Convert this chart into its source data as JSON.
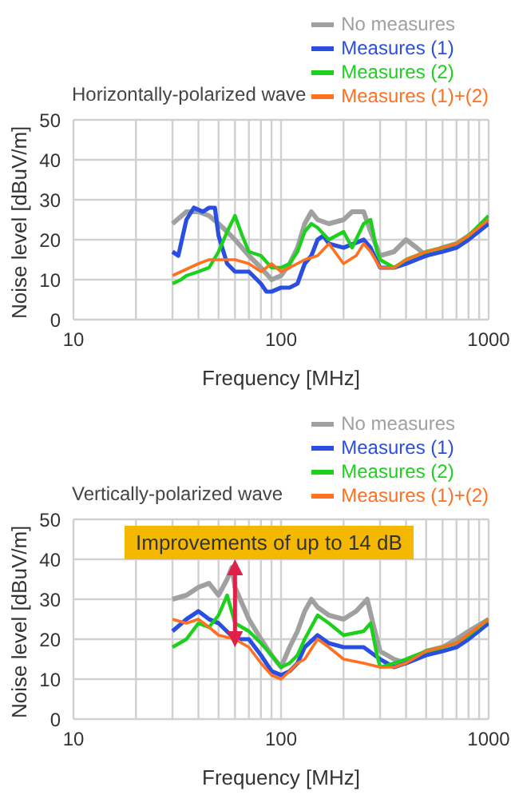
{
  "chart_data": [
    {
      "type": "line",
      "title": "Horizontally-polarized wave",
      "xlabel": "Frequency [MHz]",
      "ylabel": "Noise level [dBuV/m]",
      "log": "x",
      "xlim": [
        10,
        1000
      ],
      "xticks": [
        10,
        {
          "value": 20,
          "label": null
        },
        {
          "value": 30,
          "label": null
        },
        {
          "value": 40,
          "label": null
        },
        {
          "value": 50,
          "label": null
        },
        {
          "value": 60,
          "label": null
        },
        {
          "value": 70,
          "label": null
        },
        {
          "value": 80,
          "label": null
        },
        {
          "value": 90,
          "label": null
        },
        100,
        {
          "value": 200,
          "label": null
        },
        {
          "value": 300,
          "label": null
        },
        {
          "value": 400,
          "label": null
        },
        {
          "value": 500,
          "label": null
        },
        {
          "value": 600,
          "label": null
        },
        {
          "value": 700,
          "label": null
        },
        {
          "value": 800,
          "label": null
        },
        {
          "value": 900,
          "label": null
        },
        1000
      ],
      "ylim": [
        0,
        50
      ],
      "yticks": [
        0,
        10,
        20,
        30,
        40,
        50
      ],
      "grid": true,
      "legend": "top right",
      "series": [
        {
          "name": "No measures",
          "color": "#a0a0a0",
          "x": [
            30,
            35,
            40,
            45,
            50,
            55,
            60,
            70,
            80,
            90,
            100,
            110,
            120,
            130,
            140,
            150,
            170,
            200,
            220,
            250,
            270,
            300,
            350,
            400,
            450,
            500,
            600,
            700,
            800,
            900,
            1000
          ],
          "values": [
            24,
            27,
            27,
            26,
            24,
            22,
            20,
            16,
            13,
            10,
            11,
            14,
            18,
            24,
            27,
            25,
            24,
            25,
            27,
            27,
            22,
            16,
            17,
            20,
            18,
            16,
            18,
            19,
            21,
            23,
            25
          ]
        },
        {
          "name": "Measures (1)",
          "color": "#2a4fe0",
          "x": [
            30,
            32,
            35,
            38,
            42,
            45,
            48,
            50,
            55,
            60,
            70,
            80,
            85,
            90,
            100,
            110,
            120,
            130,
            140,
            150,
            160,
            170,
            200,
            250,
            270,
            300,
            350,
            400,
            500,
            600,
            700,
            800,
            1000
          ],
          "values": [
            17,
            16,
            25,
            28,
            27,
            28,
            28,
            21,
            14,
            12,
            12,
            9,
            7,
            7,
            8,
            8,
            9,
            14,
            16,
            20,
            21,
            19,
            18,
            20,
            18,
            13,
            13,
            14,
            16,
            17,
            18,
            20,
            24
          ]
        },
        {
          "name": "Measures (2)",
          "color": "#1ed01e",
          "x": [
            30,
            33,
            35,
            40,
            45,
            50,
            55,
            60,
            65,
            70,
            80,
            90,
            100,
            110,
            120,
            130,
            140,
            150,
            170,
            200,
            220,
            250,
            270,
            290,
            300,
            350,
            400,
            500,
            600,
            700,
            800,
            1000
          ],
          "values": [
            9,
            10,
            11,
            12,
            13,
            17,
            22,
            26,
            21,
            17,
            16,
            13,
            13,
            14,
            17,
            22,
            24,
            23,
            20,
            22,
            18,
            24,
            25,
            17,
            15,
            13,
            15,
            17,
            18,
            19,
            21,
            26
          ]
        },
        {
          "name": "Measures (1)+(2)",
          "color": "#ff7020",
          "x": [
            30,
            33,
            40,
            45,
            50,
            60,
            70,
            80,
            90,
            100,
            110,
            130,
            150,
            170,
            200,
            230,
            250,
            270,
            300,
            350,
            400,
            500,
            600,
            700,
            800,
            1000
          ],
          "values": [
            11,
            12,
            14,
            15,
            15,
            15,
            14,
            12,
            14,
            12,
            13,
            15,
            16,
            19,
            14,
            16,
            19,
            17,
            13,
            13,
            15,
            17,
            18,
            19,
            21,
            25
          ]
        }
      ]
    },
    {
      "type": "line",
      "title": "Vertically-polarized wave",
      "xlabel": "Frequency [MHz]",
      "ylabel": "Noise level [dBuV/m]",
      "log": "x",
      "xlim": [
        10,
        1000
      ],
      "xticks": [
        10,
        {
          "value": 20,
          "label": null
        },
        {
          "value": 30,
          "label": null
        },
        {
          "value": 40,
          "label": null
        },
        {
          "value": 50,
          "label": null
        },
        {
          "value": 60,
          "label": null
        },
        {
          "value": 70,
          "label": null
        },
        {
          "value": 80,
          "label": null
        },
        {
          "value": 90,
          "label": null
        },
        100,
        {
          "value": 200,
          "label": null
        },
        {
          "value": 300,
          "label": null
        },
        {
          "value": 400,
          "label": null
        },
        {
          "value": 500,
          "label": null
        },
        {
          "value": 600,
          "label": null
        },
        {
          "value": 700,
          "label": null
        },
        {
          "value": 800,
          "label": null
        },
        {
          "value": 900,
          "label": null
        },
        1000
      ],
      "ylim": [
        0,
        50
      ],
      "yticks": [
        0,
        10,
        20,
        30,
        40,
        50
      ],
      "grid": true,
      "legend": "top right",
      "annotations": [
        {
          "text": "Improvements of up to 14 dB",
          "x": 60,
          "y": 38
        }
      ],
      "series": [
        {
          "name": "No measures",
          "color": "#a0a0a0",
          "x": [
            30,
            35,
            40,
            45,
            50,
            55,
            58,
            60,
            70,
            80,
            90,
            100,
            110,
            120,
            130,
            140,
            150,
            170,
            200,
            230,
            260,
            280,
            300,
            350,
            400,
            500,
            600,
            700,
            800,
            1000
          ],
          "values": [
            30,
            31,
            33,
            34,
            31,
            35,
            38,
            33,
            25,
            20,
            16,
            13,
            18,
            22,
            27,
            30,
            28,
            26,
            25,
            27,
            30,
            23,
            17,
            15,
            14,
            17,
            18,
            20,
            22,
            25
          ]
        },
        {
          "name": "Measures (1)",
          "color": "#2a4fe0",
          "x": [
            30,
            35,
            40,
            45,
            50,
            60,
            70,
            80,
            90,
            100,
            110,
            120,
            130,
            150,
            170,
            200,
            250,
            300,
            350,
            400,
            500,
            600,
            700,
            800,
            1000
          ],
          "values": [
            22,
            25,
            27,
            25,
            24,
            20,
            20,
            16,
            12,
            11,
            12,
            14,
            18,
            21,
            19,
            18,
            18,
            15,
            13,
            14,
            16,
            17,
            18,
            20,
            24
          ]
        },
        {
          "name": "Measures (2)",
          "color": "#1ed01e",
          "x": [
            30,
            35,
            40,
            45,
            50,
            55,
            60,
            70,
            80,
            90,
            100,
            110,
            120,
            130,
            150,
            170,
            200,
            250,
            270,
            290,
            300,
            350,
            400,
            500,
            600,
            700,
            800,
            1000
          ],
          "values": [
            18,
            20,
            24,
            23,
            26,
            31,
            24,
            22,
            19,
            16,
            13,
            14,
            16,
            20,
            26,
            24,
            21,
            22,
            24,
            16,
            13,
            14,
            15,
            17,
            18,
            19,
            21,
            25
          ]
        },
        {
          "name": "Measures (1)+(2)",
          "color": "#ff7020",
          "x": [
            30,
            35,
            40,
            45,
            50,
            60,
            70,
            80,
            90,
            100,
            110,
            120,
            130,
            150,
            170,
            200,
            250,
            300,
            350,
            400,
            500,
            700,
            1000
          ],
          "values": [
            25,
            24,
            25,
            23,
            21,
            20,
            18,
            14,
            11,
            10,
            12,
            14,
            15,
            20,
            18,
            15,
            14,
            13,
            13,
            14,
            17,
            19,
            25
          ]
        }
      ]
    }
  ]
}
